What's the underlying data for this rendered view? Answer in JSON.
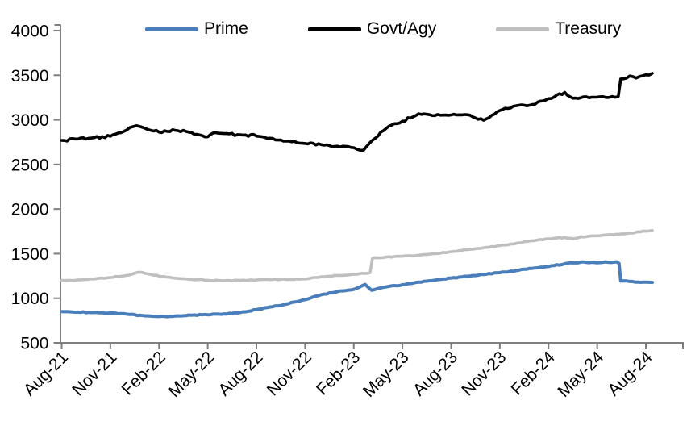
{
  "chart_data": {
    "type": "line",
    "title": "",
    "xlabel": "",
    "ylabel": "",
    "grid": false,
    "legend_position": "top",
    "axis_color": "#7f7f7f",
    "x_unit": "months since Aug-2021",
    "x_tick_months": [
      0,
      3,
      6,
      9,
      12,
      15,
      18,
      21,
      24,
      27,
      30,
      33,
      36
    ],
    "x_tick_labels": [
      "Aug-21",
      "Nov-21",
      "Feb-22",
      "May-22",
      "Aug-22",
      "Nov-22",
      "Feb-23",
      "May-23",
      "Aug-23",
      "Nov-23",
      "Feb-24",
      "May-24",
      "Aug-24"
    ],
    "ylim": [
      500,
      4000
    ],
    "y_ticks": [
      500,
      1000,
      1500,
      2000,
      2500,
      3000,
      3500,
      4000
    ],
    "series": [
      {
        "name": "Prime",
        "color": "#4A7EBB",
        "stroke_width": 4,
        "noise_amp": 6,
        "points": [
          [
            0,
            850
          ],
          [
            1,
            845
          ],
          [
            2,
            840
          ],
          [
            3,
            835
          ],
          [
            4,
            822
          ],
          [
            5,
            806
          ],
          [
            6,
            795
          ],
          [
            7,
            800
          ],
          [
            8,
            810
          ],
          [
            9,
            815
          ],
          [
            10,
            825
          ],
          [
            11,
            840
          ],
          [
            12,
            872
          ],
          [
            13,
            905
          ],
          [
            14,
            940
          ],
          [
            15,
            985
          ],
          [
            16,
            1040
          ],
          [
            17,
            1075
          ],
          [
            18,
            1100
          ],
          [
            18.7,
            1155
          ],
          [
            19.1,
            1090
          ],
          [
            20,
            1128
          ],
          [
            21,
            1152
          ],
          [
            22,
            1180
          ],
          [
            23,
            1202
          ],
          [
            24,
            1226
          ],
          [
            25,
            1246
          ],
          [
            26,
            1266
          ],
          [
            27,
            1287
          ],
          [
            28,
            1310
          ],
          [
            29,
            1335
          ],
          [
            30,
            1356
          ],
          [
            31,
            1386
          ],
          [
            32,
            1406
          ],
          [
            33,
            1398
          ],
          [
            34.2,
            1408
          ],
          [
            34.35,
            1390
          ],
          [
            34.45,
            1195
          ],
          [
            35,
            1188
          ],
          [
            36,
            1180
          ],
          [
            36.4,
            1177
          ]
        ]
      },
      {
        "name": "Govt/Agy",
        "color": "#000000",
        "stroke_width": 3.6,
        "noise_amp": 16,
        "points": [
          [
            0,
            2770
          ],
          [
            1,
            2785
          ],
          [
            2,
            2800
          ],
          [
            3,
            2815
          ],
          [
            4,
            2885
          ],
          [
            4.6,
            2935
          ],
          [
            5,
            2915
          ],
          [
            6,
            2862
          ],
          [
            7,
            2882
          ],
          [
            8,
            2858
          ],
          [
            9,
            2810
          ],
          [
            9.5,
            2856
          ],
          [
            10,
            2846
          ],
          [
            11,
            2832
          ],
          [
            12,
            2818
          ],
          [
            13,
            2792
          ],
          [
            14,
            2762
          ],
          [
            15,
            2735
          ],
          [
            16,
            2722
          ],
          [
            17,
            2705
          ],
          [
            18,
            2688
          ],
          [
            18.6,
            2660
          ],
          [
            19,
            2745
          ],
          [
            20,
            2905
          ],
          [
            21,
            2985
          ],
          [
            22,
            3068
          ],
          [
            23,
            3048
          ],
          [
            24,
            3055
          ],
          [
            25,
            3058
          ],
          [
            26,
            2995
          ],
          [
            27,
            3105
          ],
          [
            28,
            3158
          ],
          [
            29,
            3172
          ],
          [
            30,
            3238
          ],
          [
            31,
            3308
          ],
          [
            31.5,
            3242
          ],
          [
            32,
            3248
          ],
          [
            33,
            3255
          ],
          [
            34.3,
            3262
          ],
          [
            34.45,
            3458
          ],
          [
            35,
            3492
          ],
          [
            35.4,
            3468
          ],
          [
            36,
            3505
          ],
          [
            36.4,
            3522
          ]
        ]
      },
      {
        "name": "Treasury",
        "color": "#BFBFBF",
        "stroke_width": 3.6,
        "noise_amp": 6,
        "points": [
          [
            0,
            1200
          ],
          [
            1,
            1206
          ],
          [
            2,
            1216
          ],
          [
            3,
            1232
          ],
          [
            4,
            1256
          ],
          [
            4.8,
            1292
          ],
          [
            6,
            1248
          ],
          [
            7,
            1226
          ],
          [
            8,
            1212
          ],
          [
            9,
            1202
          ],
          [
            10,
            1196
          ],
          [
            11,
            1200
          ],
          [
            12,
            1205
          ],
          [
            13,
            1210
          ],
          [
            14,
            1211
          ],
          [
            15,
            1216
          ],
          [
            16,
            1242
          ],
          [
            17,
            1256
          ],
          [
            18,
            1270
          ],
          [
            19,
            1285
          ],
          [
            19.15,
            1448
          ],
          [
            20,
            1462
          ],
          [
            21,
            1470
          ],
          [
            22,
            1482
          ],
          [
            23,
            1500
          ],
          [
            24,
            1522
          ],
          [
            25,
            1545
          ],
          [
            26,
            1566
          ],
          [
            27,
            1590
          ],
          [
            28,
            1615
          ],
          [
            29,
            1645
          ],
          [
            30,
            1666
          ],
          [
            31,
            1680
          ],
          [
            31.5,
            1668
          ],
          [
            32,
            1690
          ],
          [
            33,
            1700
          ],
          [
            34,
            1712
          ],
          [
            35,
            1730
          ],
          [
            36,
            1752
          ],
          [
            36.4,
            1760
          ]
        ]
      }
    ]
  }
}
